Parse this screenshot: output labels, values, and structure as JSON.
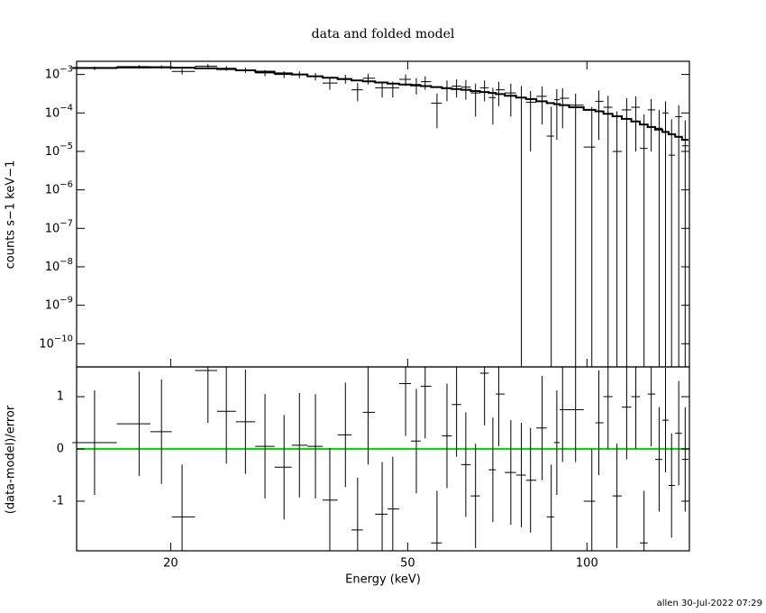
{
  "chart_data": [
    {
      "type": "spectrum",
      "title": "data and folded model",
      "ylabel": "counts s−1 keV−1",
      "log_x": true,
      "log_y": true,
      "xlim": [
        13.9,
        148.6
      ],
      "ylim": [
        2.5e-11,
        0.0022
      ],
      "yticks": [
        {
          "value": 1e-10,
          "label": "10−10"
        },
        {
          "value": 1e-09,
          "label": "10−9"
        },
        {
          "value": 1e-08,
          "label": "10−8"
        },
        {
          "value": 1e-07,
          "label": "10−7"
        },
        {
          "value": 1e-06,
          "label": "10−6"
        },
        {
          "value": 1e-05,
          "label": "10−5"
        },
        {
          "value": 0.0001,
          "label": "10−4"
        },
        {
          "value": 0.001,
          "label": "10−3"
        }
      ],
      "x": [
        14.9,
        17.7,
        19.3,
        20.9,
        23.1,
        24.8,
        26.7,
        28.8,
        31.0,
        32.9,
        35.0,
        37.0,
        39.3,
        41.2,
        42.9,
        45.3,
        47.2,
        49.6,
        51.7,
        53.5,
        56.0,
        58.2,
        60.4,
        62.6,
        65.0,
        67.3,
        69.5,
        71.1,
        74.5,
        77.6,
        80.4,
        84.1,
        87.1,
        89.0,
        91.0,
        95.7,
        101.9,
        104.7,
        108.5,
        112.3,
        116.6,
        120.8,
        124.7,
        128.2,
        132.2,
        135.5,
        138.7,
        142.6,
        146.2
      ],
      "values": [
        0.00145,
        0.0016,
        0.00158,
        0.0012,
        0.00165,
        0.00145,
        0.0013,
        0.0011,
        0.001,
        0.001,
        0.0009,
        0.0006,
        0.00078,
        0.0004,
        0.0008,
        0.00045,
        0.00045,
        0.00075,
        0.00055,
        0.00065,
        0.00018,
        0.00045,
        0.0005,
        0.00047,
        0.00033,
        0.00045,
        0.00025,
        0.0004,
        0.00033,
        0.00025,
        0.00019,
        0.00027,
        2.5e-05,
        0.00022,
        0.00024,
        0.00016,
        1.3e-05,
        0.0002,
        0.00014,
        1e-05,
        0.00012,
        0.00014,
        1.2e-05,
        0.00012,
        4e-05,
        0.0001,
        8e-06,
        8e-05,
        1.4e-05
      ],
      "errors": [
        0.00015,
        0.00015,
        0.00016,
        0.0002,
        0.0002,
        0.0002,
        0.0002,
        0.0002,
        0.0002,
        0.0002,
        0.0002,
        0.0002,
        0.0002,
        0.0002,
        0.00025,
        0.0002,
        0.0002,
        0.00025,
        0.00025,
        0.00025,
        0.00014,
        0.00025,
        0.00025,
        0.00025,
        0.00025,
        0.00025,
        0.0002,
        0.00025,
        0.00025,
        0.00025,
        0.00018,
        0.00022,
        0.00012,
        0.0002,
        0.0002,
        0.00016,
        0.00013,
        0.00018,
        0.00014,
        0.0001,
        0.00012,
        0.00013,
        8e-05,
        0.00011,
        8e-05,
        0.0001,
        6e-05,
        8e-05,
        5e-05
      ],
      "model": [
        0.00148,
        0.00152,
        0.00153,
        0.0015,
        0.00145,
        0.00138,
        0.00128,
        0.00118,
        0.00107,
        0.001,
        0.0009,
        0.00082,
        0.00076,
        0.0007,
        0.00066,
        0.00062,
        0.00058,
        0.00055,
        0.00052,
        0.0005,
        0.00047,
        0.00044,
        0.00042,
        0.0004,
        0.00037,
        0.00035,
        0.00033,
        0.00031,
        0.00028,
        0.00025,
        0.00023,
        0.0002,
        0.00018,
        0.00017,
        0.00016,
        0.00014,
        0.00012,
        0.00011,
        9.5e-05,
        8.2e-05,
        7e-05,
        6e-05,
        5e-05,
        4.3e-05,
        3.7e-05,
        3.2e-05,
        2.8e-05,
        2.4e-05,
        2e-05
      ],
      "color": "#000000"
    },
    {
      "type": "residual",
      "xlabel": "Energy (keV)",
      "ylabel": "(data-model)/error",
      "log_x": true,
      "xlim": [
        13.9,
        148.6
      ],
      "xticks": [
        20,
        50,
        100
      ],
      "ylim": [
        -1.95,
        1.57
      ],
      "yticks": [
        -1,
        0,
        1
      ],
      "values": [
        0.12,
        0.48,
        0.33,
        -1.3,
        1.5,
        0.72,
        0.52,
        0.05,
        -0.35,
        0.07,
        0.05,
        -0.98,
        0.27,
        -1.55,
        0.7,
        -1.25,
        -1.15,
        1.25,
        0.15,
        1.2,
        -1.8,
        0.25,
        0.85,
        -0.3,
        -0.9,
        1.45,
        -0.4,
        1.05,
        -0.45,
        -0.5,
        -0.6,
        0.4,
        -1.3,
        0.12,
        0.75,
        0.75,
        -1.0,
        0.5,
        1.0,
        -0.9,
        0.8,
        1.0,
        -1.8,
        1.05,
        -0.2,
        0.55,
        -0.7,
        0.3,
        -0.2
      ],
      "errors": [
        1,
        1,
        1,
        1,
        1,
        1,
        1,
        1,
        1,
        1,
        1,
        1,
        1,
        1,
        1,
        1,
        1,
        1,
        1,
        1,
        1,
        1,
        1,
        1,
        1,
        1,
        1,
        1,
        1,
        1,
        1,
        1,
        1,
        1,
        1,
        1,
        1,
        1,
        1,
        1,
        1,
        1,
        1,
        1,
        1,
        1,
        1,
        1,
        1
      ],
      "color": "#000000",
      "zero_line_color": "#00dd00"
    }
  ],
  "footer": "allen 30-Jul-2022 07:29"
}
